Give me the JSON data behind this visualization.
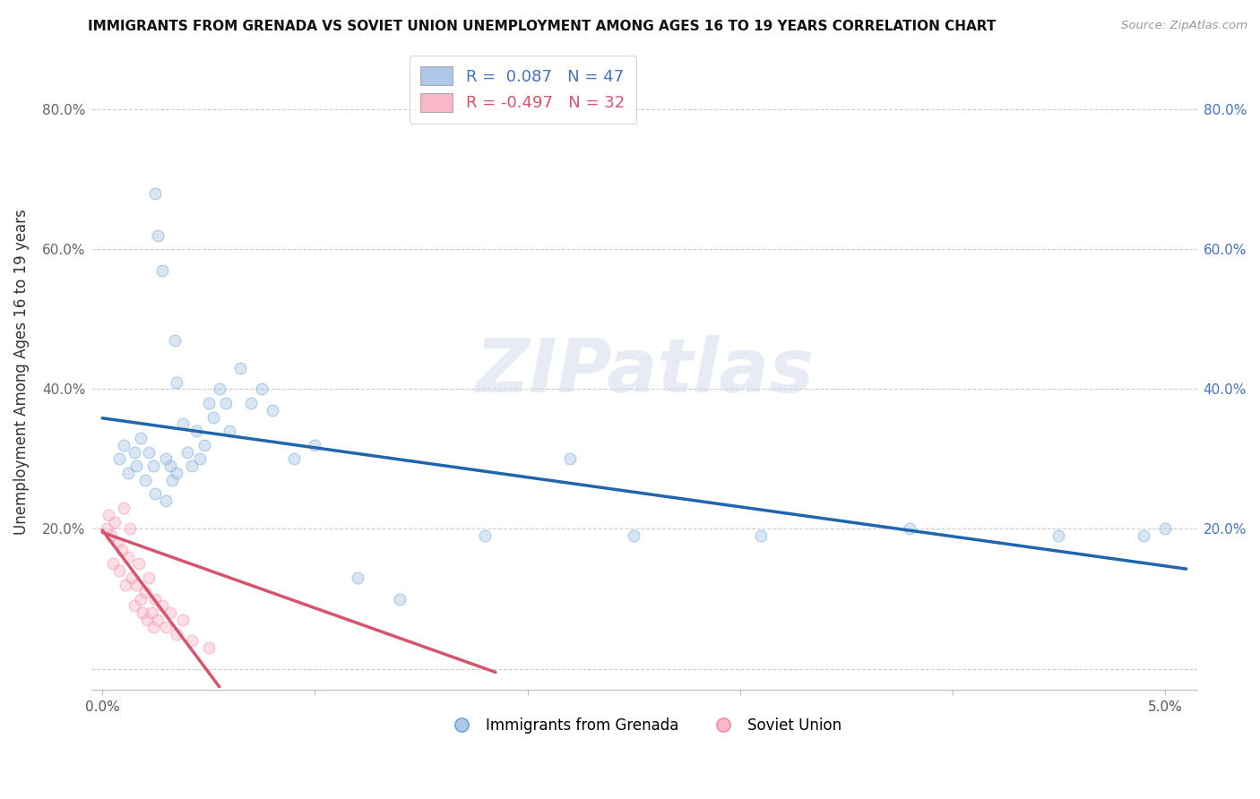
{
  "title": "IMMIGRANTS FROM GRENADA VS SOVIET UNION UNEMPLOYMENT AMONG AGES 16 TO 19 YEARS CORRELATION CHART",
  "source": "Source: ZipAtlas.com",
  "ylabel": "Unemployment Among Ages 16 to 19 years",
  "ytick_values": [
    0.0,
    0.2,
    0.4,
    0.6,
    0.8
  ],
  "ytick_labels": [
    "",
    "20.0%",
    "40.0%",
    "60.0%",
    "80.0%"
  ],
  "xtick_values": [
    0.0,
    0.01,
    0.02,
    0.03,
    0.04,
    0.05
  ],
  "xtick_labels": [
    "0.0%",
    "",
    "",
    "",
    "",
    "5.0%"
  ],
  "xlim": [
    -0.0005,
    0.0515
  ],
  "ylim": [
    -0.03,
    0.88
  ],
  "legend_blue_text": "R =  0.087   N = 47",
  "legend_pink_text": "R = -0.497   N = 32",
  "legend_label_blue": "Immigrants from Grenada",
  "legend_label_pink": "Soviet Union",
  "blue_fill_color": "#aec6e8",
  "pink_fill_color": "#f9b8c8",
  "blue_edge_color": "#5a9fd4",
  "pink_edge_color": "#f080a0",
  "blue_line_color": "#2166ac",
  "pink_line_color": "#d6546e",
  "background_color": "#ffffff",
  "grenada_x": [
    0.0008,
    0.001,
    0.0012,
    0.0015,
    0.0016,
    0.0018,
    0.002,
    0.0022,
    0.0024,
    0.0025,
    0.0026,
    0.0028,
    0.003,
    0.0032,
    0.0033,
    0.0034,
    0.0035,
    0.0038,
    0.004,
    0.0042,
    0.0044,
    0.0046,
    0.0048,
    0.005,
    0.0052,
    0.0055,
    0.0058,
    0.006,
    0.0065,
    0.007,
    0.0075,
    0.008,
    0.009,
    0.01,
    0.012,
    0.014,
    0.018,
    0.022,
    0.025,
    0.031,
    0.038,
    0.045,
    0.049,
    0.05,
    0.0025,
    0.003,
    0.0035
  ],
  "grenada_y": [
    0.3,
    0.32,
    0.28,
    0.31,
    0.29,
    0.33,
    0.27,
    0.31,
    0.29,
    0.68,
    0.62,
    0.57,
    0.3,
    0.29,
    0.27,
    0.47,
    0.41,
    0.35,
    0.31,
    0.29,
    0.34,
    0.3,
    0.32,
    0.38,
    0.36,
    0.4,
    0.38,
    0.34,
    0.43,
    0.38,
    0.4,
    0.37,
    0.3,
    0.32,
    0.13,
    0.1,
    0.19,
    0.3,
    0.19,
    0.19,
    0.2,
    0.19,
    0.19,
    0.2,
    0.25,
    0.24,
    0.28
  ],
  "soviet_x": [
    0.0002,
    0.0003,
    0.0004,
    0.0005,
    0.0006,
    0.0007,
    0.0008,
    0.0009,
    0.001,
    0.0011,
    0.0012,
    0.0013,
    0.0014,
    0.0015,
    0.0016,
    0.0017,
    0.0018,
    0.0019,
    0.002,
    0.0021,
    0.0022,
    0.0023,
    0.0024,
    0.0025,
    0.0026,
    0.0028,
    0.003,
    0.0032,
    0.0035,
    0.0038,
    0.0042,
    0.005
  ],
  "soviet_y": [
    0.2,
    0.22,
    0.19,
    0.15,
    0.21,
    0.18,
    0.14,
    0.17,
    0.23,
    0.12,
    0.16,
    0.2,
    0.13,
    0.09,
    0.12,
    0.15,
    0.1,
    0.08,
    0.11,
    0.07,
    0.13,
    0.08,
    0.06,
    0.1,
    0.07,
    0.09,
    0.06,
    0.08,
    0.05,
    0.07,
    0.04,
    0.03
  ],
  "marker_size": 85,
  "alpha": 0.45
}
